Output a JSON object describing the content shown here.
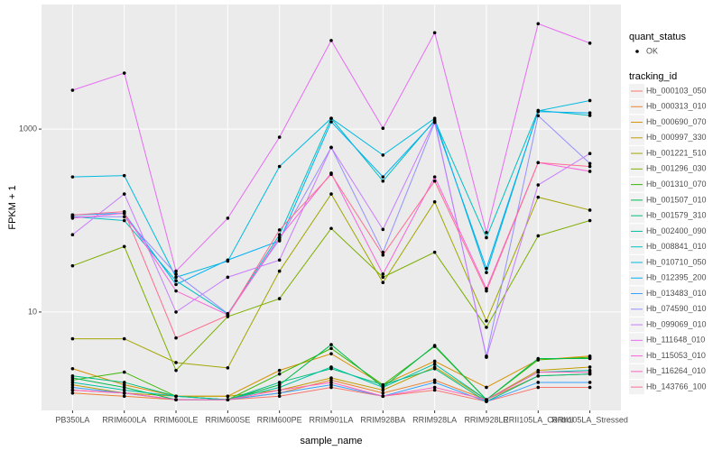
{
  "chart_data": {
    "type": "line",
    "x_label": "sample_name",
    "y_label": "FPKM + 1",
    "categories": [
      "PB350LA",
      "RRIM600LA",
      "RRIM600LE",
      "RRIM600SE",
      "RRIM600PE",
      "RRIM901LA",
      "RRIM928BA",
      "RRIM928LA",
      "RRIM928LE",
      "RRII105LA_Control",
      "RRII105LA_Stressed"
    ],
    "log_scale": true,
    "grid": true,
    "ylim": [
      0.84,
      23000
    ],
    "yticks": [
      10,
      1000
    ],
    "point_legend_title": "quant_status",
    "point_legend_labels": [
      "OK"
    ],
    "legend_title": "tracking_id",
    "series": [
      {
        "name": "Hb_000103_050",
        "color": "#F8766D",
        "values": [
          1.4,
          1.3,
          1.1,
          1.1,
          1.2,
          1.5,
          1.2,
          1.4,
          1.05,
          1.5,
          1.5
        ]
      },
      {
        "name": "Hb_000313_010",
        "color": "#EA8331",
        "values": [
          1.3,
          1.2,
          1.1,
          1.1,
          1.3,
          1.8,
          1.3,
          1.8,
          1.1,
          2.0,
          2.1
        ]
      },
      {
        "name": "Hb_000690_070",
        "color": "#D89000",
        "values": [
          2.4,
          1.6,
          1.2,
          1.2,
          2.3,
          3.5,
          1.6,
          2.9,
          1.5,
          3.0,
          3.3
        ]
      },
      {
        "name": "Hb_000997_330",
        "color": "#C09B00",
        "values": [
          1.6,
          1.3,
          1.2,
          1.2,
          1.4,
          1.9,
          1.4,
          2.5,
          1.1,
          2.3,
          2.5
        ]
      },
      {
        "name": "Hb_001221_510",
        "color": "#A3A500",
        "values": [
          5.1,
          5.1,
          2.8,
          2.45,
          28,
          195,
          21,
          160,
          8,
          180,
          130
        ]
      },
      {
        "name": "Hb_001296_030",
        "color": "#7CAE00",
        "values": [
          32,
          52,
          2.3,
          8.9,
          14,
          82,
          24,
          45,
          6.8,
          68,
          100
        ]
      },
      {
        "name": "Hb_001310_070",
        "color": "#39B600",
        "values": [
          1.8,
          2.2,
          1.2,
          1.1,
          2.1,
          4.0,
          1.6,
          4.2,
          1.1,
          3.0,
          3.2
        ]
      },
      {
        "name": "Hb_001507_010",
        "color": "#00BB4E",
        "values": [
          1.9,
          1.5,
          1.1,
          1.1,
          1.6,
          4.4,
          1.5,
          4.3,
          1.1,
          3.1,
          3.1
        ]
      },
      {
        "name": "Hb_001579_310",
        "color": "#00BF7D",
        "values": [
          2.0,
          1.7,
          1.2,
          1.1,
          1.7,
          2.4,
          1.6,
          2.4,
          1.05,
          2.0,
          2.1
        ]
      },
      {
        "name": "Hb_002400_090",
        "color": "#00C1A3",
        "values": [
          1.7,
          1.4,
          1.2,
          1.1,
          1.5,
          2.5,
          1.5,
          2.7,
          1.1,
          2.2,
          2.3
        ]
      },
      {
        "name": "Hb_008841_010",
        "color": "#00BFC4",
        "values": [
          110,
          100,
          22,
          9.5,
          70,
          1310,
          270,
          1250,
          65,
          1600,
          1410
        ]
      },
      {
        "name": "Hb_010710_050",
        "color": "#00BAE0",
        "values": [
          300,
          310,
          24,
          36,
          390,
          1310,
          520,
          1310,
          27,
          1580,
          2050
        ]
      },
      {
        "name": "Hb_012395_200",
        "color": "#00B0F6",
        "values": [
          115,
          120,
          20,
          37,
          60,
          1200,
          300,
          1220,
          30,
          1550,
          1500
        ]
      },
      {
        "name": "Hb_013483_010",
        "color": "#35A2FF",
        "values": [
          1.5,
          1.3,
          1.1,
          1.1,
          1.3,
          1.6,
          1.2,
          1.7,
          1.05,
          1.7,
          1.7
        ]
      },
      {
        "name": "Hb_074590_010",
        "color": "#9590FF",
        "values": [
          110,
          110,
          26,
          9.6,
          62,
          630,
          45,
          1180,
          3.3,
          1400,
          420
        ]
      },
      {
        "name": "Hb_099069_010",
        "color": "#C77CFF",
        "values": [
          70,
          195,
          10,
          24,
          37,
          630,
          80,
          1220,
          3.2,
          245,
          540
        ]
      },
      {
        "name": "Hb_111648_010",
        "color": "#E76BF3",
        "values": [
          2660,
          4090,
          28,
          106,
          815,
          9300,
          1020,
          11300,
          74,
          14200,
          8700
        ]
      },
      {
        "name": "Hb_115053_010",
        "color": "#FA62DB",
        "values": [
          106,
          120,
          17,
          9.3,
          65,
          330,
          26,
          300,
          18,
          430,
          345
        ]
      },
      {
        "name": "Hb_116264_010",
        "color": "#FF62BC",
        "values": [
          1.4,
          1.3,
          1.1,
          1.1,
          1.4,
          1.7,
          1.2,
          1.5,
          1.1,
          2.2,
          2.2
        ]
      },
      {
        "name": "Hb_143766_100",
        "color": "#FF6C91",
        "values": [
          115,
          125,
          5.2,
          9.2,
          79,
          320,
          42,
          270,
          17,
          430,
          390
        ]
      }
    ]
  }
}
